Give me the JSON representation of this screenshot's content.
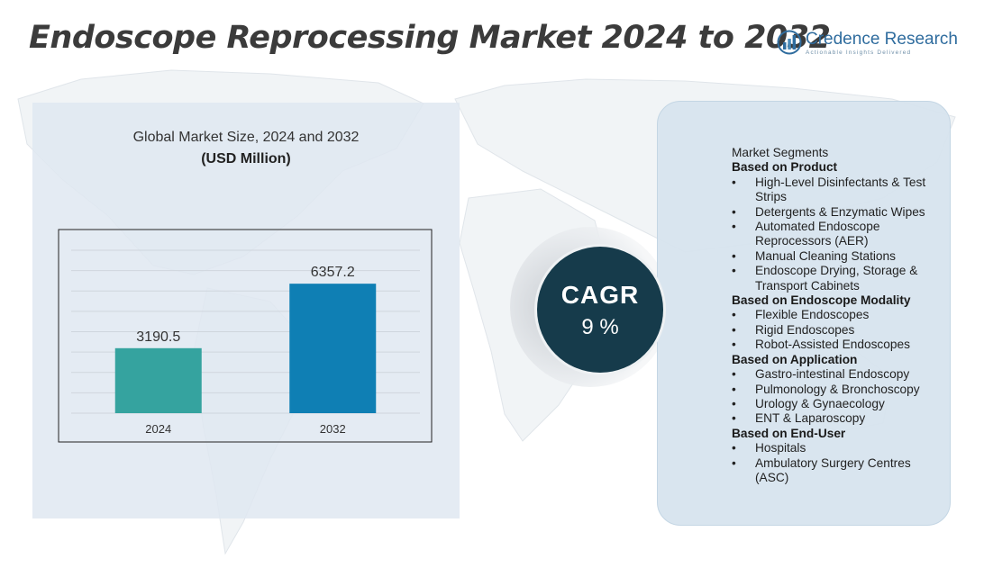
{
  "header": {
    "title": "Endoscope Reprocessing Market 2024 to 2032",
    "logo_name": "Credence Research",
    "logo_tagline": "Actionable Insights Delivered"
  },
  "chart_data": {
    "type": "bar",
    "title": "Global Market Size,  2024 and 2032",
    "unit_label": "(USD Million)",
    "categories": [
      "2024",
      "2032"
    ],
    "values": [
      3190.5,
      6357.2
    ],
    "value_labels": [
      "3190.5",
      "6357.2"
    ],
    "colors": [
      "#35a39f",
      "#0f7fb4"
    ],
    "ylim": [
      0,
      8000
    ],
    "grid": true,
    "xlabel": "",
    "ylabel": ""
  },
  "cagr": {
    "label": "CAGR",
    "value": "9 %"
  },
  "segments": {
    "heading": "Market Segments",
    "groups": [
      {
        "title": "Based on Product",
        "items": [
          "High-Level Disinfectants & Test Strips",
          "Detergents & Enzymatic Wipes",
          "Automated Endoscope Reprocessors  (AER)",
          "Manual Cleaning Stations",
          "Endoscope Drying, Storage & Transport Cabinets"
        ]
      },
      {
        "title": "Based on Endoscope Modality",
        "items": [
          "Flexible Endoscopes",
          "Rigid Endoscopes",
          "Robot-Assisted Endoscopes"
        ]
      },
      {
        "title": "Based on Application",
        "items": [
          "Gastro-intestinal Endoscopy",
          "Pulmonology  & Bronchoscopy",
          "Urology & Gynaecology",
          "ENT & Laparoscopy"
        ]
      },
      {
        "title": "Based on End-User",
        "items": [
          "Hospitals",
          "Ambulatory Surgery Centres (ASC)"
        ]
      }
    ]
  },
  "colors": {
    "title": "#3b3b3b",
    "cagr_circle": "#163b4b",
    "panel": "#dfe8f1",
    "segment_panel": "#d7e4ee"
  }
}
